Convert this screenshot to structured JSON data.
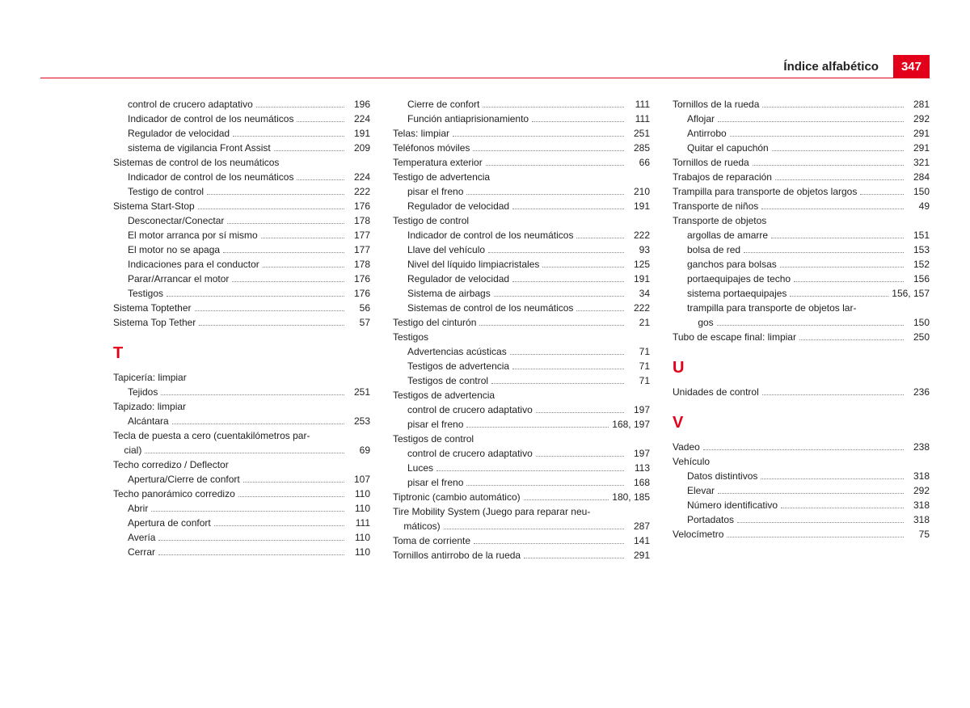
{
  "header": {
    "title": "Índice alfabético",
    "page": "347"
  },
  "col1": [
    {
      "t": "e",
      "sub": 1,
      "label": "control de crucero adaptativo",
      "page": "196"
    },
    {
      "t": "e",
      "sub": 1,
      "label": "Indicador de control de los neumáticos",
      "page": "224"
    },
    {
      "t": "e",
      "sub": 1,
      "label": "Regulador de velocidad",
      "page": "191"
    },
    {
      "t": "e",
      "sub": 1,
      "label": "sistema de vigilancia Front Assist",
      "page": "209"
    },
    {
      "t": "h",
      "label": "Sistemas de control de los neumáticos"
    },
    {
      "t": "e",
      "sub": 1,
      "label": "Indicador de control de los neumáticos",
      "page": "224"
    },
    {
      "t": "e",
      "sub": 1,
      "label": "Testigo de control",
      "page": "222"
    },
    {
      "t": "e",
      "sub": 0,
      "label": "Sistema Start-Stop",
      "page": "176"
    },
    {
      "t": "e",
      "sub": 1,
      "label": "Desconectar/Conectar",
      "page": "178"
    },
    {
      "t": "e",
      "sub": 1,
      "label": "El motor arranca por sí mismo",
      "page": "177"
    },
    {
      "t": "e",
      "sub": 1,
      "label": "El motor no se apaga",
      "page": "177"
    },
    {
      "t": "e",
      "sub": 1,
      "label": "Indicaciones para el conductor",
      "page": "178"
    },
    {
      "t": "e",
      "sub": 1,
      "label": "Parar/Arrancar el motor",
      "page": "176"
    },
    {
      "t": "e",
      "sub": 1,
      "label": "Testigos",
      "page": "176"
    },
    {
      "t": "e",
      "sub": 0,
      "label": "Sistema Toptether",
      "page": "56"
    },
    {
      "t": "e",
      "sub": 0,
      "label": "Sistema Top Tether",
      "page": "57"
    },
    {
      "t": "L",
      "label": "T"
    },
    {
      "t": "h",
      "label": "Tapicería: limpiar"
    },
    {
      "t": "e",
      "sub": 1,
      "label": "Tejidos",
      "page": "251"
    },
    {
      "t": "h",
      "label": "Tapizado: limpiar"
    },
    {
      "t": "e",
      "sub": 1,
      "label": "Alcántara",
      "page": "253"
    },
    {
      "t": "e",
      "sub": 0,
      "label": "Tecla de puesta a cero (cuentakilómetros par-    cial)",
      "page": "69",
      "wrap": true
    },
    {
      "t": "h",
      "label": "Techo corredizo / Deflector"
    },
    {
      "t": "e",
      "sub": 1,
      "label": "Apertura/Cierre de confort",
      "page": "107"
    },
    {
      "t": "e",
      "sub": 0,
      "label": "Techo panorámico corredizo",
      "page": "110"
    },
    {
      "t": "e",
      "sub": 1,
      "label": "Abrir",
      "page": "110"
    },
    {
      "t": "e",
      "sub": 1,
      "label": "Apertura de confort",
      "page": "111"
    },
    {
      "t": "e",
      "sub": 1,
      "label": "Avería",
      "page": "110"
    },
    {
      "t": "e",
      "sub": 1,
      "label": "Cerrar",
      "page": "110"
    }
  ],
  "col2": [
    {
      "t": "e",
      "sub": 1,
      "label": "Cierre de confort",
      "page": "111"
    },
    {
      "t": "e",
      "sub": 1,
      "label": "Función antiaprisionamiento",
      "page": "111"
    },
    {
      "t": "e",
      "sub": 0,
      "label": "Telas: limpiar",
      "page": "251"
    },
    {
      "t": "e",
      "sub": 0,
      "label": "Teléfonos móviles",
      "page": "285"
    },
    {
      "t": "e",
      "sub": 0,
      "label": "Temperatura exterior",
      "page": "66"
    },
    {
      "t": "h",
      "label": "Testigo de advertencia"
    },
    {
      "t": "e",
      "sub": 1,
      "label": "pisar el freno",
      "page": "210"
    },
    {
      "t": "e",
      "sub": 1,
      "label": "Regulador de velocidad",
      "page": "191"
    },
    {
      "t": "h",
      "label": "Testigo de control"
    },
    {
      "t": "e",
      "sub": 1,
      "label": "Indicador de control de los neumáticos",
      "page": "222"
    },
    {
      "t": "e",
      "sub": 1,
      "label": "Llave del vehículo",
      "page": "93"
    },
    {
      "t": "e",
      "sub": 1,
      "label": "Nivel del líquido limpiacristales",
      "page": "125"
    },
    {
      "t": "e",
      "sub": 1,
      "label": "Regulador de velocidad",
      "page": "191"
    },
    {
      "t": "e",
      "sub": 1,
      "label": "Sistema de airbags",
      "page": "34"
    },
    {
      "t": "e",
      "sub": 1,
      "label": "Sistemas de control de los neumáticos",
      "page": "222"
    },
    {
      "t": "e",
      "sub": 0,
      "label": "Testigo del cinturón",
      "page": "21"
    },
    {
      "t": "h",
      "label": "Testigos"
    },
    {
      "t": "e",
      "sub": 1,
      "label": "Advertencias acústicas",
      "page": "71"
    },
    {
      "t": "e",
      "sub": 1,
      "label": "Testigos de advertencia",
      "page": "71"
    },
    {
      "t": "e",
      "sub": 1,
      "label": "Testigos de control",
      "page": "71"
    },
    {
      "t": "h",
      "label": "Testigos de advertencia"
    },
    {
      "t": "e",
      "sub": 1,
      "label": "control de crucero adaptativo",
      "page": "197"
    },
    {
      "t": "e",
      "sub": 1,
      "label": "pisar el freno",
      "page": "168, 197"
    },
    {
      "t": "h",
      "label": "Testigos de control"
    },
    {
      "t": "e",
      "sub": 1,
      "label": "control de crucero adaptativo",
      "page": "197"
    },
    {
      "t": "e",
      "sub": 1,
      "label": "Luces",
      "page": "113"
    },
    {
      "t": "e",
      "sub": 1,
      "label": "pisar el freno",
      "page": "168"
    },
    {
      "t": "e",
      "sub": 0,
      "label": "Tiptronic (cambio automático)",
      "page": "180, 185"
    },
    {
      "t": "e",
      "sub": 0,
      "label": "Tire Mobility System (Juego para reparar neu-    máticos)",
      "page": "287",
      "wrap": true
    },
    {
      "t": "e",
      "sub": 0,
      "label": "Toma de corriente",
      "page": "141"
    },
    {
      "t": "e",
      "sub": 0,
      "label": "Tornillos antirrobo de la rueda",
      "page": "291"
    }
  ],
  "col3": [
    {
      "t": "e",
      "sub": 0,
      "label": "Tornillos de la rueda",
      "page": "281"
    },
    {
      "t": "e",
      "sub": 1,
      "label": "Aflojar",
      "page": "292"
    },
    {
      "t": "e",
      "sub": 1,
      "label": "Antirrobo",
      "page": "291"
    },
    {
      "t": "e",
      "sub": 1,
      "label": "Quitar el capuchón",
      "page": "291"
    },
    {
      "t": "e",
      "sub": 0,
      "label": "Tornillos de rueda",
      "page": "321"
    },
    {
      "t": "e",
      "sub": 0,
      "label": "Trabajos de reparación",
      "page": "284"
    },
    {
      "t": "e",
      "sub": 0,
      "label": "Trampilla para transporte de objetos largos",
      "page": "150"
    },
    {
      "t": "e",
      "sub": 0,
      "label": "Transporte de niños",
      "page": "49"
    },
    {
      "t": "h",
      "label": "Transporte de objetos"
    },
    {
      "t": "e",
      "sub": 1,
      "label": "argollas de amarre",
      "page": "151"
    },
    {
      "t": "e",
      "sub": 1,
      "label": "bolsa de red",
      "page": "153"
    },
    {
      "t": "e",
      "sub": 1,
      "label": "ganchos para bolsas",
      "page": "152"
    },
    {
      "t": "e",
      "sub": 1,
      "label": "portaequipajes de techo",
      "page": "156"
    },
    {
      "t": "e",
      "sub": 1,
      "label": "sistema portaequipajes",
      "page": "156, 157"
    },
    {
      "t": "e",
      "sub": 1,
      "label": "trampilla para transporte de objetos lar-    gos",
      "page": "150",
      "wrap": true
    },
    {
      "t": "e",
      "sub": 0,
      "label": "Tubo de escape final: limpiar",
      "page": "250"
    },
    {
      "t": "L",
      "label": "U"
    },
    {
      "t": "e",
      "sub": 0,
      "label": "Unidades de control",
      "page": "236"
    },
    {
      "t": "L",
      "label": "V"
    },
    {
      "t": "e",
      "sub": 0,
      "label": "Vadeo",
      "page": "238"
    },
    {
      "t": "h",
      "label": "Vehículo"
    },
    {
      "t": "e",
      "sub": 1,
      "label": "Datos distintivos",
      "page": "318"
    },
    {
      "t": "e",
      "sub": 1,
      "label": "Elevar",
      "page": "292"
    },
    {
      "t": "e",
      "sub": 1,
      "label": "Número identificativo",
      "page": "318"
    },
    {
      "t": "e",
      "sub": 1,
      "label": "Portadatos",
      "page": "318"
    },
    {
      "t": "e",
      "sub": 0,
      "label": "Velocímetro",
      "page": "75"
    }
  ]
}
